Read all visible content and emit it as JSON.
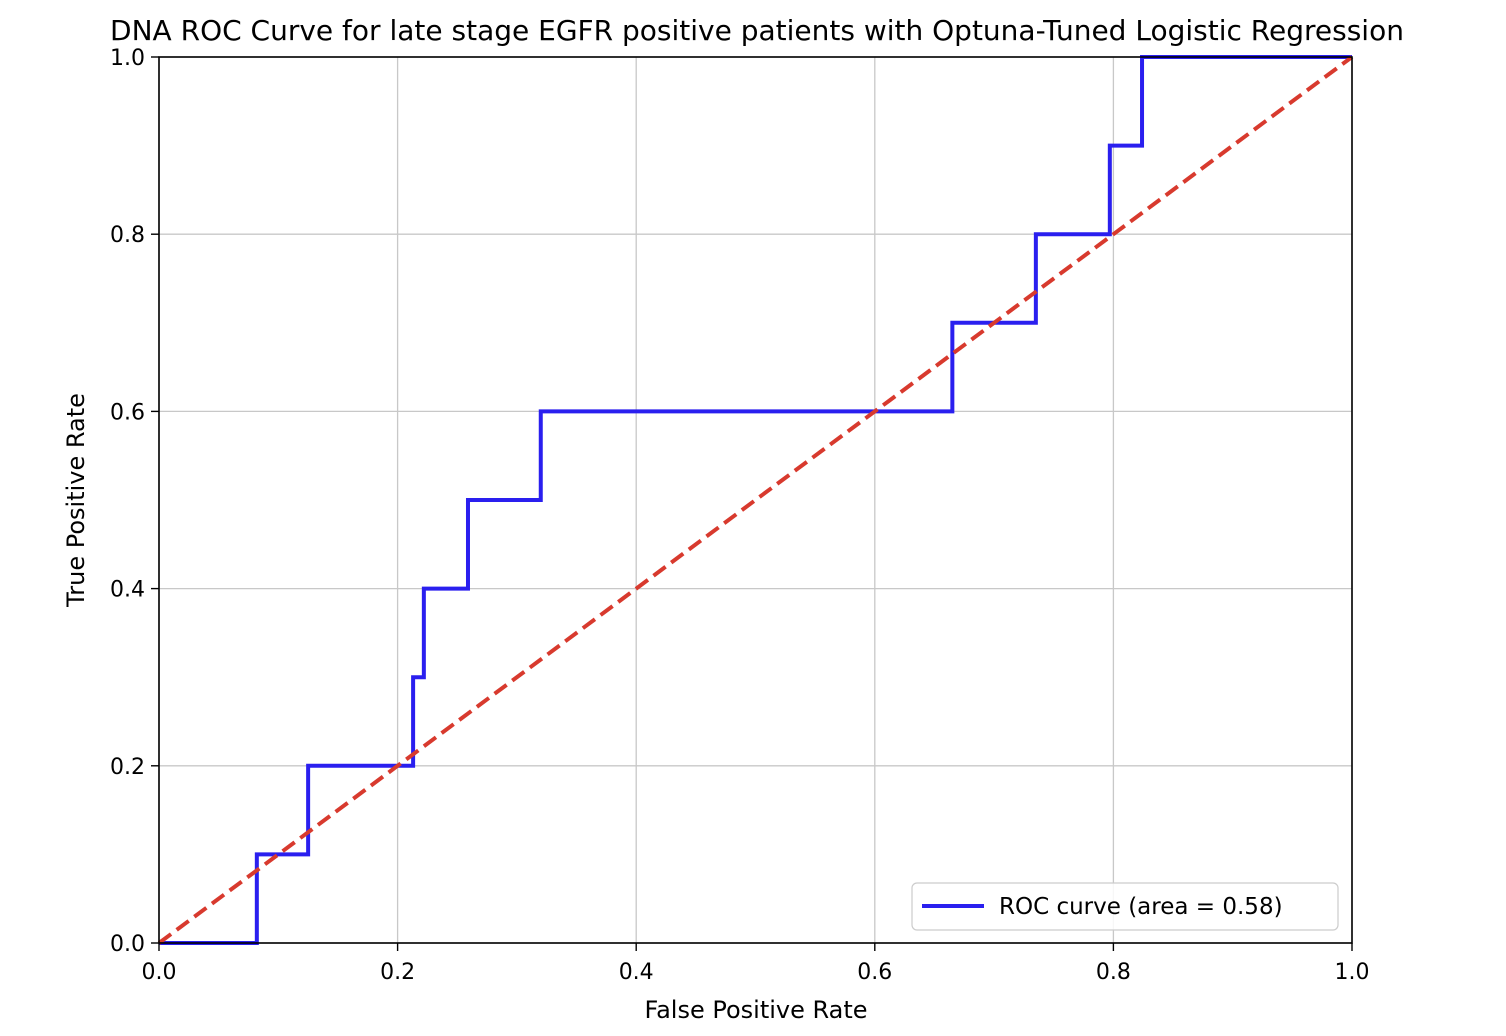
{
  "chart_data": {
    "type": "line",
    "title": "DNA ROC Curve for late stage EGFR positive patients with Optuna-Tuned Logistic Regression",
    "xlabel": "False Positive Rate",
    "ylabel": "True Positive Rate",
    "xlim": [
      0.0,
      1.0
    ],
    "ylim": [
      0.0,
      1.0
    ],
    "xticks": [
      "0.0",
      "0.2",
      "0.4",
      "0.6",
      "0.8",
      "1.0"
    ],
    "yticks": [
      "0.0",
      "0.2",
      "0.4",
      "0.6",
      "0.8",
      "1.0"
    ],
    "grid": true,
    "legend_position": "lower right",
    "series": [
      {
        "name": "ROC curve (area = 0.58)",
        "color": "#2a1fef",
        "style": "step",
        "x": [
          0.0,
          0.082,
          0.082,
          0.125,
          0.125,
          0.213,
          0.213,
          0.222,
          0.222,
          0.259,
          0.259,
          0.32,
          0.32,
          0.665,
          0.665,
          0.735,
          0.735,
          0.797,
          0.797,
          0.824,
          0.824,
          1.0
        ],
        "y": [
          0.0,
          0.0,
          0.1,
          0.1,
          0.2,
          0.2,
          0.3,
          0.3,
          0.4,
          0.4,
          0.5,
          0.5,
          0.6,
          0.6,
          0.7,
          0.7,
          0.8,
          0.8,
          0.9,
          0.9,
          1.0,
          1.0
        ]
      },
      {
        "color": "#d83a2e",
        "style": "dashed",
        "x": [
          0.0,
          1.0
        ],
        "y": [
          0.0,
          1.0
        ]
      }
    ]
  }
}
